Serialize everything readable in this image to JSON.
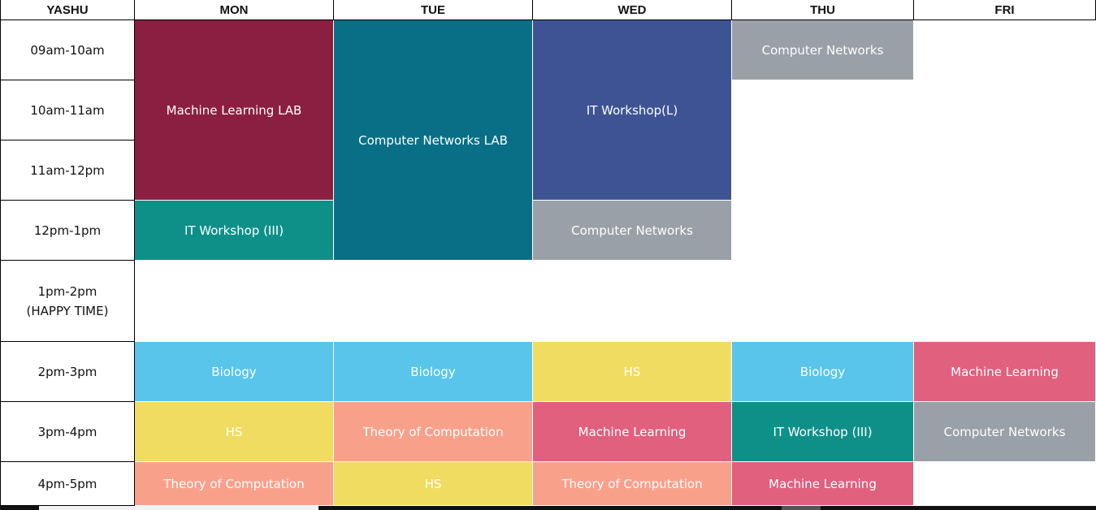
{
  "corner_label": "YASHU",
  "days": [
    "MON",
    "TUE",
    "WED",
    "THU",
    "FRI"
  ],
  "times": [
    {
      "label": "09am-10am"
    },
    {
      "label": "10am-11am"
    },
    {
      "label": "11am-12pm"
    },
    {
      "label": "12pm-1pm"
    },
    {
      "label": "1pm-2pm",
      "note": "(HAPPY TIME)"
    },
    {
      "label": "2pm-3pm"
    },
    {
      "label": "3pm-4pm"
    },
    {
      "label": "4pm-5pm"
    }
  ],
  "colors": {
    "maroon": "#8b1f41",
    "teal_dark": "#086f86",
    "indigo": "#3e5394",
    "gray": "#9aa0a7",
    "teal": "#0e9089",
    "sky": "#59c5eb",
    "yellow": "#f0dc61",
    "pink": "#e0607e",
    "salmon": "#f9a08b"
  },
  "sessions": [
    {
      "day": 0,
      "slot": 0,
      "span": 3,
      "title": "Machine Learning LAB",
      "color": "maroon"
    },
    {
      "day": 1,
      "slot": 0,
      "span": 4,
      "title": "Computer Networks LAB",
      "color": "teal_dark"
    },
    {
      "day": 2,
      "slot": 0,
      "span": 3,
      "title": "IT Workshop(L)",
      "color": "indigo"
    },
    {
      "day": 3,
      "slot": 0,
      "span": 1,
      "title": "Computer Networks",
      "color": "gray"
    },
    {
      "day": 0,
      "slot": 3,
      "span": 1,
      "title": "IT Workshop (III)",
      "color": "teal"
    },
    {
      "day": 2,
      "slot": 3,
      "span": 1,
      "title": "Computer Networks",
      "color": "gray"
    },
    {
      "day": 0,
      "slot": 5,
      "span": 1,
      "title": "Biology",
      "color": "sky"
    },
    {
      "day": 1,
      "slot": 5,
      "span": 1,
      "title": "Biology",
      "color": "sky"
    },
    {
      "day": 2,
      "slot": 5,
      "span": 1,
      "title": "HS",
      "color": "yellow"
    },
    {
      "day": 3,
      "slot": 5,
      "span": 1,
      "title": "Biology",
      "color": "sky"
    },
    {
      "day": 4,
      "slot": 5,
      "span": 1,
      "title": "Machine Learning",
      "color": "pink"
    },
    {
      "day": 0,
      "slot": 6,
      "span": 1,
      "title": "HS",
      "color": "yellow"
    },
    {
      "day": 1,
      "slot": 6,
      "span": 1,
      "title": "Theory of Computation",
      "color": "salmon"
    },
    {
      "day": 2,
      "slot": 6,
      "span": 1,
      "title": "Machine Learning",
      "color": "pink"
    },
    {
      "day": 3,
      "slot": 6,
      "span": 1,
      "title": "IT Workshop (III)",
      "color": "teal"
    },
    {
      "day": 4,
      "slot": 6,
      "span": 1,
      "title": "Computer Networks",
      "color": "gray"
    },
    {
      "day": 0,
      "slot": 7,
      "span": 1,
      "title": "Theory of Computation",
      "color": "salmon"
    },
    {
      "day": 1,
      "slot": 7,
      "span": 1,
      "title": "HS",
      "color": "yellow"
    },
    {
      "day": 2,
      "slot": 7,
      "span": 1,
      "title": "Theory of Computation",
      "color": "salmon"
    },
    {
      "day": 3,
      "slot": 7,
      "span": 1,
      "title": "Machine Learning",
      "color": "pink"
    }
  ]
}
